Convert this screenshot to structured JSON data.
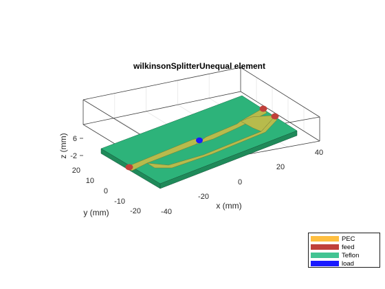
{
  "title": "wilkinsonSplitterUnequal element",
  "axes": {
    "x_label": "x (mm)",
    "y_label": "y (mm)",
    "z_label": "z (mm)",
    "x_ticks": [
      "-40",
      "-20",
      "0",
      "20",
      "40"
    ],
    "y_ticks": [
      "20",
      "10",
      "0",
      "-10",
      "-20"
    ],
    "z_ticks": [
      "6",
      "-2"
    ]
  },
  "legend": [
    {
      "label": "PEC",
      "color": "#ffbf40"
    },
    {
      "label": "feed",
      "color": "#c0403a"
    },
    {
      "label": "Teflon",
      "color": "#42c492"
    },
    {
      "label": "load",
      "color": "#1a1aff"
    }
  ],
  "colors": {
    "substrate_top": "#2db37a",
    "substrate_side": "#1f8a5a",
    "conductor": "#b7bb4c",
    "feed": "#c0403a",
    "load": "#1a1aff",
    "box_line": "#3a3a3a",
    "grid": "#e3e3e3"
  }
}
